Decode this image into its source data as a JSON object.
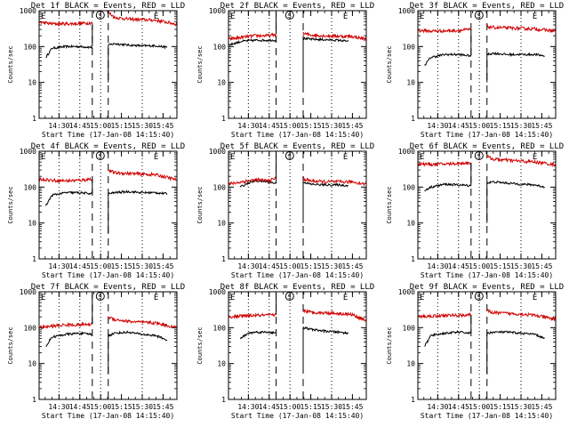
{
  "figure": {
    "common": {
      "ylabel": "Counts/sec",
      "xlabel": "Start Time (17-Jan-08 14:15:40)",
      "xticks": [
        "14:30",
        "14:45",
        "15:00",
        "15:15",
        "15:30",
        "15:45"
      ],
      "yticks": [
        "1",
        "10",
        "100",
        "1000"
      ],
      "markers": {
        "eclipse_start": "E",
        "saa": "S",
        "eclipse_end": "E"
      }
    }
  },
  "chart_data": [
    {
      "type": "line",
      "title": "Det 1f BLACK = Events, RED = LLD",
      "ylim": [
        1,
        1000
      ],
      "log_y": true,
      "xlim": [
        "14:15:40",
        "15:55"
      ],
      "series": [
        {
          "color": "#000000",
          "segments": [
            {
              "x": [
                "14:20:30",
                "14:25",
                "14:35",
                "14:45",
                "14:54"
              ],
              "y": [
                50,
                90,
                100,
                100,
                95
              ]
            },
            {
              "x": [
                "15:05:30",
                "15:10",
                "15:20",
                "15:30",
                "15:40",
                "15:48"
              ],
              "y": [
                110,
                120,
                110,
                105,
                105,
                95
              ]
            }
          ]
        },
        {
          "color": "#d00000",
          "segments": [
            {
              "x": [
                "14:15:40",
                "14:25",
                "14:35",
                "14:45",
                "14:54"
              ],
              "y": [
                480,
                430,
                430,
                440,
                460
              ]
            },
            {
              "x": [
                "15:05:30",
                "15:10",
                "15:20",
                "15:30",
                "15:40",
                "15:55"
              ],
              "y": [
                900,
                650,
                580,
                560,
                540,
                420
              ]
            }
          ]
        }
      ],
      "features": {
        "steps": [
          {
            "x": "14:54",
            "y": [
              100,
              400
            ]
          }
        ],
        "dips": [
          {
            "x": "15:05:30",
            "from": 110,
            "to": 10
          }
        ]
      }
    },
    {
      "type": "line",
      "title": "Det 2f BLACK = Events, RED = LLD",
      "ylim": [
        1,
        1000
      ],
      "log_y": true,
      "xlim": [
        "14:15:40",
        "15:55"
      ],
      "series": [
        {
          "color": "#000000",
          "segments": [
            {
              "x": [
                "14:15:40",
                "14:25",
                "14:35",
                "14:45",
                "14:50"
              ],
              "y": [
                110,
                140,
                150,
                150,
                150
              ]
            },
            {
              "x": [
                "15:09:30",
                "15:15",
                "15:25",
                "15:35",
                "15:42"
              ],
              "y": [
                170,
                160,
                155,
                150,
                140
              ]
            }
          ]
        },
        {
          "color": "#d00000",
          "segments": [
            {
              "x": [
                "14:15:40",
                "14:25",
                "14:35",
                "14:45",
                "14:50"
              ],
              "y": [
                160,
                180,
                200,
                200,
                220
              ]
            },
            {
              "x": [
                "15:09:30",
                "15:15",
                "15:25",
                "15:35",
                "15:45",
                "15:55"
              ],
              "y": [
                230,
                210,
                200,
                195,
                190,
                160
              ]
            }
          ]
        }
      ],
      "features": {
        "steps": [
          {
            "x": "14:50",
            "y": [
              220,
              900
            ]
          }
        ],
        "dips": [
          {
            "x": "15:09:30",
            "from": 170,
            "to": 8
          }
        ]
      }
    },
    {
      "type": "line",
      "title": "Det 3f BLACK = Events, RED = LLD",
      "ylim": [
        1,
        1000
      ],
      "log_y": true,
      "xlim": [
        "14:15:40",
        "15:55"
      ],
      "series": [
        {
          "color": "#000000",
          "segments": [
            {
              "x": [
                "14:20:30",
                "14:25",
                "14:35",
                "14:45",
                "14:54"
              ],
              "y": [
                30,
                50,
                60,
                60,
                55
              ]
            },
            {
              "x": [
                "15:05:30",
                "15:10",
                "15:20",
                "15:30",
                "15:40",
                "15:47"
              ],
              "y": [
                60,
                65,
                60,
                60,
                60,
                55
              ]
            }
          ]
        },
        {
          "color": "#d00000",
          "segments": [
            {
              "x": [
                "14:15:40",
                "14:25",
                "14:35",
                "14:45",
                "14:54"
              ],
              "y": [
                280,
                270,
                275,
                280,
                300
              ]
            },
            {
              "x": [
                "15:05:30",
                "15:10",
                "15:20",
                "15:30",
                "15:40",
                "15:55"
              ],
              "y": [
                360,
                340,
                330,
                320,
                310,
                270
              ]
            }
          ]
        }
      ],
      "features": {
        "steps": [
          {
            "x": "14:54",
            "y": [
              55,
              300
            ]
          }
        ],
        "dips": [
          {
            "x": "15:05:30",
            "from": 60,
            "to": 10
          }
        ]
      }
    },
    {
      "type": "line",
      "title": "Det 4f BLACK = Events, RED = LLD",
      "ylim": [
        1,
        1000
      ],
      "log_y": true,
      "xlim": [
        "14:15:40",
        "15:55"
      ],
      "series": [
        {
          "color": "#000000",
          "segments": [
            {
              "x": [
                "14:20:30",
                "14:25",
                "14:35",
                "14:45",
                "14:54"
              ],
              "y": [
                30,
                60,
                70,
                70,
                65
              ]
            },
            {
              "x": [
                "15:05:30",
                "15:10",
                "15:20",
                "15:30",
                "15:40",
                "15:48"
              ],
              "y": [
                65,
                70,
                75,
                70,
                70,
                65
              ]
            }
          ]
        },
        {
          "color": "#d00000",
          "segments": [
            {
              "x": [
                "14:15:40",
                "14:25",
                "14:35",
                "14:45",
                "14:54"
              ],
              "y": [
                170,
                155,
                150,
                155,
                170
              ]
            },
            {
              "x": [
                "15:05:30",
                "15:10",
                "15:20",
                "15:30",
                "15:40",
                "15:55"
              ],
              "y": [
                300,
                250,
                240,
                230,
                220,
                160
              ]
            }
          ]
        }
      ],
      "features": {
        "steps": [
          {
            "x": "14:54",
            "y": [
              65,
              170
            ]
          }
        ],
        "dips": [
          {
            "x": "15:05:30",
            "from": 65,
            "to": 5
          }
        ]
      }
    },
    {
      "type": "line",
      "title": "Det 5f BLACK = Events, RED = LLD",
      "ylim": [
        1,
        1000
      ],
      "log_y": true,
      "xlim": [
        "14:15:40",
        "15:55"
      ],
      "series": [
        {
          "color": "#000000",
          "segments": [
            {
              "x": [
                "14:24",
                "14:30",
                "14:35",
                "14:45",
                "14:50"
              ],
              "y": [
                100,
                130,
                150,
                140,
                125
              ]
            },
            {
              "x": [
                "15:09:30",
                "15:15",
                "15:25",
                "15:35",
                "15:42"
              ],
              "y": [
                140,
                120,
                115,
                115,
                110
              ]
            }
          ]
        },
        {
          "color": "#d00000",
          "segments": [
            {
              "x": [
                "14:15:40",
                "14:25",
                "14:35",
                "14:45",
                "14:50"
              ],
              "y": [
                120,
                140,
                160,
                150,
                180
              ]
            },
            {
              "x": [
                "15:09:30",
                "15:15",
                "15:25",
                "15:35",
                "15:45",
                "15:55"
              ],
              "y": [
                170,
                150,
                140,
                140,
                140,
                120
              ]
            }
          ]
        }
      ],
      "features": {
        "steps": [
          {
            "x": "14:50",
            "y": [
              180,
              900
            ]
          }
        ],
        "dips": [
          {
            "x": "15:09:30",
            "from": 140,
            "to": 10
          }
        ]
      }
    },
    {
      "type": "line",
      "title": "Det 6f BLACK = Events, RED = LLD",
      "ylim": [
        1,
        1000
      ],
      "log_y": true,
      "xlim": [
        "14:15:40",
        "15:55"
      ],
      "series": [
        {
          "color": "#000000",
          "segments": [
            {
              "x": [
                "14:20:30",
                "14:25",
                "14:35",
                "14:45",
                "14:54"
              ],
              "y": [
                80,
                100,
                120,
                115,
                110
              ]
            },
            {
              "x": [
                "15:05:30",
                "15:10",
                "15:20",
                "15:30",
                "15:40",
                "15:47"
              ],
              "y": [
                130,
                140,
                130,
                120,
                115,
                100
              ]
            }
          ]
        },
        {
          "color": "#d00000",
          "segments": [
            {
              "x": [
                "14:15:40",
                "14:25",
                "14:35",
                "14:45",
                "14:54"
              ],
              "y": [
                450,
                430,
                440,
                460,
                480
              ]
            },
            {
              "x": [
                "15:05:30",
                "15:10",
                "15:20",
                "15:30",
                "15:40",
                "15:55"
              ],
              "y": [
                700,
                600,
                560,
                530,
                500,
                420
              ]
            }
          ]
        }
      ],
      "features": {
        "steps": [
          {
            "x": "14:54",
            "y": [
              110,
              480
            ]
          }
        ],
        "dips": [
          {
            "x": "15:05:30",
            "from": 130,
            "to": 10
          }
        ]
      }
    },
    {
      "type": "line",
      "title": "Det 7f BLACK = Events, RED = LLD",
      "ylim": [
        1,
        1000
      ],
      "log_y": true,
      "xlim": [
        "14:15:40",
        "15:55"
      ],
      "series": [
        {
          "color": "#000000",
          "segments": [
            {
              "x": [
                "14:20:30",
                "14:25",
                "14:35",
                "14:45",
                "14:54"
              ],
              "y": [
                30,
                55,
                65,
                70,
                65
              ]
            },
            {
              "x": [
                "15:05:30",
                "15:10",
                "15:20",
                "15:30",
                "15:40",
                "15:48"
              ],
              "y": [
                60,
                70,
                75,
                65,
                60,
                45
              ]
            }
          ]
        },
        {
          "color": "#d00000",
          "segments": [
            {
              "x": [
                "14:15:40",
                "14:25",
                "14:35",
                "14:45",
                "14:54"
              ],
              "y": [
                100,
                110,
                120,
                120,
                125
              ]
            },
            {
              "x": [
                "15:05:30",
                "15:10",
                "15:20",
                "15:30",
                "15:40",
                "15:55"
              ],
              "y": [
                200,
                170,
                150,
                140,
                135,
                100
              ]
            }
          ]
        }
      ],
      "features": {
        "steps": [
          {
            "x": "14:54",
            "y": [
              125,
              900
            ]
          }
        ],
        "dips": [
          {
            "x": "15:05:30",
            "from": 60,
            "to": 5
          }
        ]
      }
    },
    {
      "type": "line",
      "title": "Det 8f BLACK = Events, RED = LLD",
      "ylim": [
        1,
        1000
      ],
      "log_y": true,
      "xlim": [
        "14:15:40",
        "15:55"
      ],
      "series": [
        {
          "color": "#000000",
          "segments": [
            {
              "x": [
                "14:24",
                "14:30",
                "14:35",
                "14:45",
                "14:50"
              ],
              "y": [
                50,
                70,
                75,
                75,
                70
              ]
            },
            {
              "x": [
                "15:09:30",
                "15:15",
                "15:25",
                "15:35",
                "15:42"
              ],
              "y": [
                100,
                90,
                80,
                75,
                70
              ]
            }
          ]
        },
        {
          "color": "#d00000",
          "segments": [
            {
              "x": [
                "14:15:40",
                "14:25",
                "14:35",
                "14:45",
                "14:50"
              ],
              "y": [
                200,
                210,
                220,
                220,
                230
              ]
            },
            {
              "x": [
                "15:09:30",
                "15:15",
                "15:25",
                "15:35",
                "15:45",
                "15:55"
              ],
              "y": [
                300,
                270,
                260,
                250,
                230,
                160
              ]
            }
          ]
        }
      ],
      "features": {
        "steps": [
          {
            "x": "14:50",
            "y": [
              230,
              900
            ]
          }
        ],
        "dips": [
          {
            "x": "15:09:30",
            "from": 100,
            "to": 8
          }
        ]
      }
    },
    {
      "type": "line",
      "title": "Det 9f BLACK = Events, RED = LLD",
      "ylim": [
        1,
        1000
      ],
      "log_y": true,
      "xlim": [
        "14:15:40",
        "15:55"
      ],
      "series": [
        {
          "color": "#000000",
          "segments": [
            {
              "x": [
                "14:20:30",
                "14:25",
                "14:35",
                "14:45",
                "14:54"
              ],
              "y": [
                30,
                60,
                70,
                75,
                70
              ]
            },
            {
              "x": [
                "15:05:30",
                "15:10",
                "15:20",
                "15:30",
                "15:40",
                "15:47"
              ],
              "y": [
                70,
                75,
                75,
                70,
                65,
                50
              ]
            }
          ]
        },
        {
          "color": "#d00000",
          "segments": [
            {
              "x": [
                "14:15:40",
                "14:25",
                "14:35",
                "14:45",
                "14:54"
              ],
              "y": [
                200,
                210,
                220,
                220,
                230
              ]
            },
            {
              "x": [
                "15:05:30",
                "15:10",
                "15:20",
                "15:30",
                "15:40",
                "15:55"
              ],
              "y": [
                300,
                260,
                250,
                240,
                220,
                170
              ]
            }
          ]
        }
      ],
      "features": {
        "steps": [
          {
            "x": "14:54",
            "y": [
              70,
              230
            ]
          }
        ],
        "dips": [
          {
            "x": "15:05:30",
            "from": 70,
            "to": 5
          }
        ]
      }
    }
  ]
}
